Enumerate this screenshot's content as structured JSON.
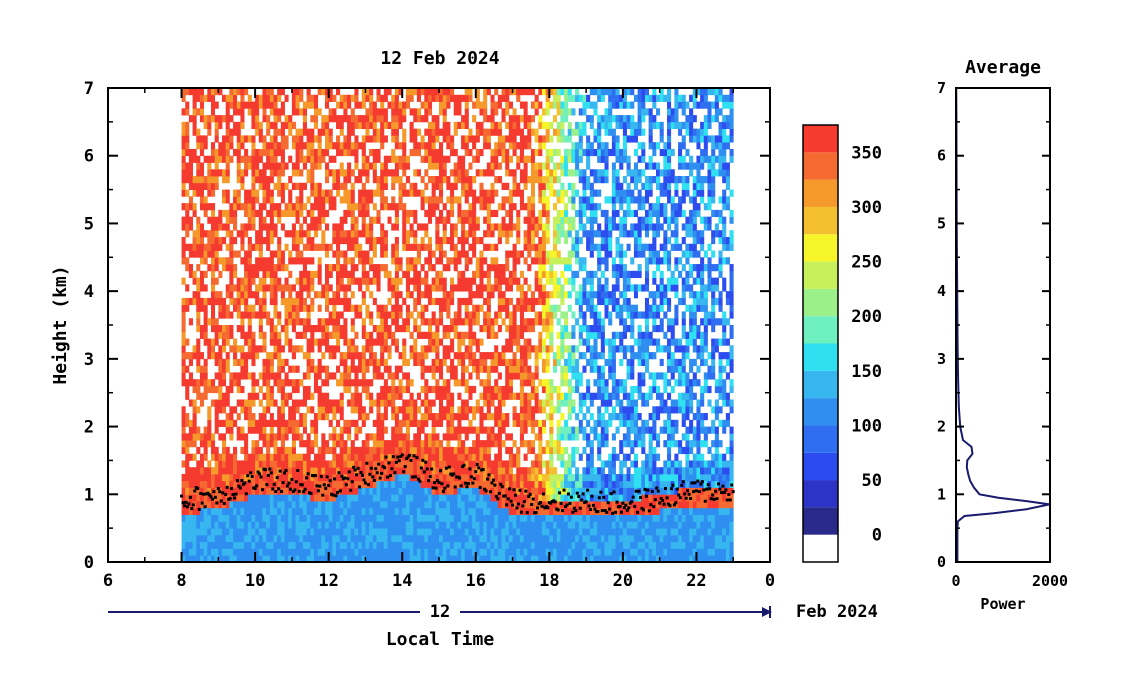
{
  "colors": {
    "frame": "#000000",
    "time_arrow": "#1a1a6e",
    "colorbar_levels": [
      "#ffffff",
      "#2a2a8a",
      "#2c34c8",
      "#2d4cf0",
      "#2f6ef0",
      "#2f8ff0",
      "#37b6f0",
      "#2fe0f0",
      "#6ef0c0",
      "#9cf08a",
      "#c8f05a",
      "#f5f52a",
      "#f5c030",
      "#f59a2a",
      "#f56a30",
      "#f53a30"
    ]
  },
  "chart_data": [
    {
      "type": "heatmap",
      "title": "12 Feb 2024",
      "xlabel": "Local Time",
      "ylabel": "Height (km)",
      "xlim": [
        6,
        24
      ],
      "ylim": [
        0,
        7
      ],
      "x_ticks": [
        "6",
        "8",
        "10",
        "12",
        "14",
        "16",
        "18",
        "20",
        "22",
        "0"
      ],
      "y_ticks": [
        "0",
        "1",
        "2",
        "3",
        "4",
        "5",
        "6",
        "7"
      ],
      "data_time_range": [
        8,
        23
      ],
      "date_axis": {
        "day": "12",
        "month_year": "Feb 2024"
      },
      "colorbar": {
        "ticks": [
          "0",
          "50",
          "100",
          "150",
          "200",
          "250",
          "300",
          "350"
        ],
        "range": [
          -25,
          375
        ],
        "levels": [
          -25,
          0,
          25,
          50,
          75,
          100,
          125,
          150,
          175,
          200,
          225,
          250,
          275,
          300,
          325,
          350,
          375
        ]
      },
      "boundary_layer_top": [
        {
          "t": 8.0,
          "h": 0.9
        },
        {
          "t": 9.0,
          "h": 1.0
        },
        {
          "t": 10.0,
          "h": 1.2
        },
        {
          "t": 11.0,
          "h": 1.2
        },
        {
          "t": 12.0,
          "h": 1.1
        },
        {
          "t": 13.0,
          "h": 1.3
        },
        {
          "t": 14.0,
          "h": 1.5
        },
        {
          "t": 15.0,
          "h": 1.2
        },
        {
          "t": 16.0,
          "h": 1.3
        },
        {
          "t": 17.0,
          "h": 0.9
        },
        {
          "t": 18.0,
          "h": 0.9
        },
        {
          "t": 19.0,
          "h": 0.9
        },
        {
          "t": 20.0,
          "h": 0.85
        },
        {
          "t": 21.0,
          "h": 0.95
        },
        {
          "t": 22.0,
          "h": 1.05
        },
        {
          "t": 23.0,
          "h": 1.05
        }
      ],
      "grid": false
    },
    {
      "type": "line",
      "title": "Average",
      "xlabel": "Power",
      "ylabel": "",
      "xlim": [
        0,
        2000
      ],
      "ylim": [
        0,
        7
      ],
      "x_ticks": [
        "0",
        "2000"
      ],
      "y_ticks": [
        "0",
        "1",
        "2",
        "3",
        "4",
        "5",
        "6",
        "7"
      ],
      "series": [
        {
          "x": [
            30,
            30,
            40,
            180,
            800,
            1500,
            1990,
            1500,
            900,
            500,
            380,
            300,
            260,
            230,
            240,
            350,
            330,
            150,
            90,
            60,
            45,
            35,
            25,
            15,
            10,
            8,
            5
          ],
          "y": [
            0.0,
            0.5,
            0.6,
            0.68,
            0.72,
            0.78,
            0.85,
            0.9,
            0.95,
            1.0,
            1.1,
            1.2,
            1.3,
            1.4,
            1.5,
            1.6,
            1.7,
            1.8,
            2.0,
            2.3,
            2.7,
            3.2,
            4.0,
            5.0,
            6.0,
            6.6,
            7.0
          ]
        }
      ],
      "grid": false
    }
  ]
}
